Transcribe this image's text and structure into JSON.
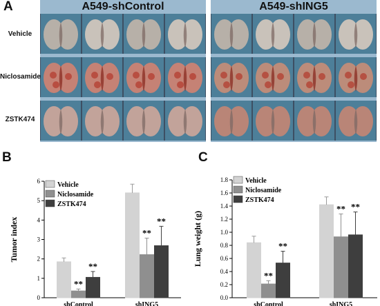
{
  "panel_a": {
    "letter": "A",
    "left_title": "A549-shControl",
    "right_title": "A549-shING5",
    "rows": [
      "Vehicle",
      "Niclosamide",
      "ZSTK474"
    ]
  },
  "chart_data": [
    {
      "panel_letter": "B",
      "type": "bar",
      "categories": [
        "shControl",
        "shING5"
      ],
      "series": [
        {
          "name": "Vehicle",
          "values": [
            1.85,
            5.4
          ],
          "errors": [
            0.2,
            0.45
          ],
          "color": "#d3d3d3"
        },
        {
          "name": "Niclosamide",
          "values": [
            0.35,
            2.22
          ],
          "errors": [
            0.1,
            0.85
          ],
          "color": "#8f8f8f"
        },
        {
          "name": "ZSTK474",
          "values": [
            1.05,
            2.68
          ],
          "errors": [
            0.3,
            1.0
          ],
          "color": "#3e3e3e"
        }
      ],
      "significance": [
        [
          "",
          "**",
          "**"
        ],
        [
          "",
          "**",
          "**"
        ]
      ],
      "ylabel": "Tumor index",
      "ylim": [
        0,
        6
      ],
      "yticks": [
        "0",
        "1",
        "2",
        "3",
        "4",
        "5",
        "6"
      ],
      "legend": "top-left"
    },
    {
      "panel_letter": "C",
      "type": "bar",
      "categories": [
        "shControl",
        "shING5"
      ],
      "series": [
        {
          "name": "Vehicle",
          "values": [
            0.84,
            1.42
          ],
          "errors": [
            0.1,
            0.12
          ],
          "color": "#d3d3d3"
        },
        {
          "name": "Niclosamide",
          "values": [
            0.21,
            0.93
          ],
          "errors": [
            0.05,
            0.35
          ],
          "color": "#8f8f8f"
        },
        {
          "name": "ZSTK474",
          "values": [
            0.53,
            0.96
          ],
          "errors": [
            0.18,
            0.35
          ],
          "color": "#3e3e3e"
        }
      ],
      "significance": [
        [
          "",
          "**",
          "**"
        ],
        [
          "",
          "**",
          "**"
        ]
      ],
      "ylabel": "Lung weight (g)",
      "ylim": [
        0,
        1.8
      ],
      "yticks": [
        "0.0",
        "0.2",
        "0.4",
        "0.6",
        "0.8",
        "1.0",
        "1.2",
        "1.4",
        "1.6",
        "1.8"
      ],
      "legend": "top-left"
    }
  ]
}
